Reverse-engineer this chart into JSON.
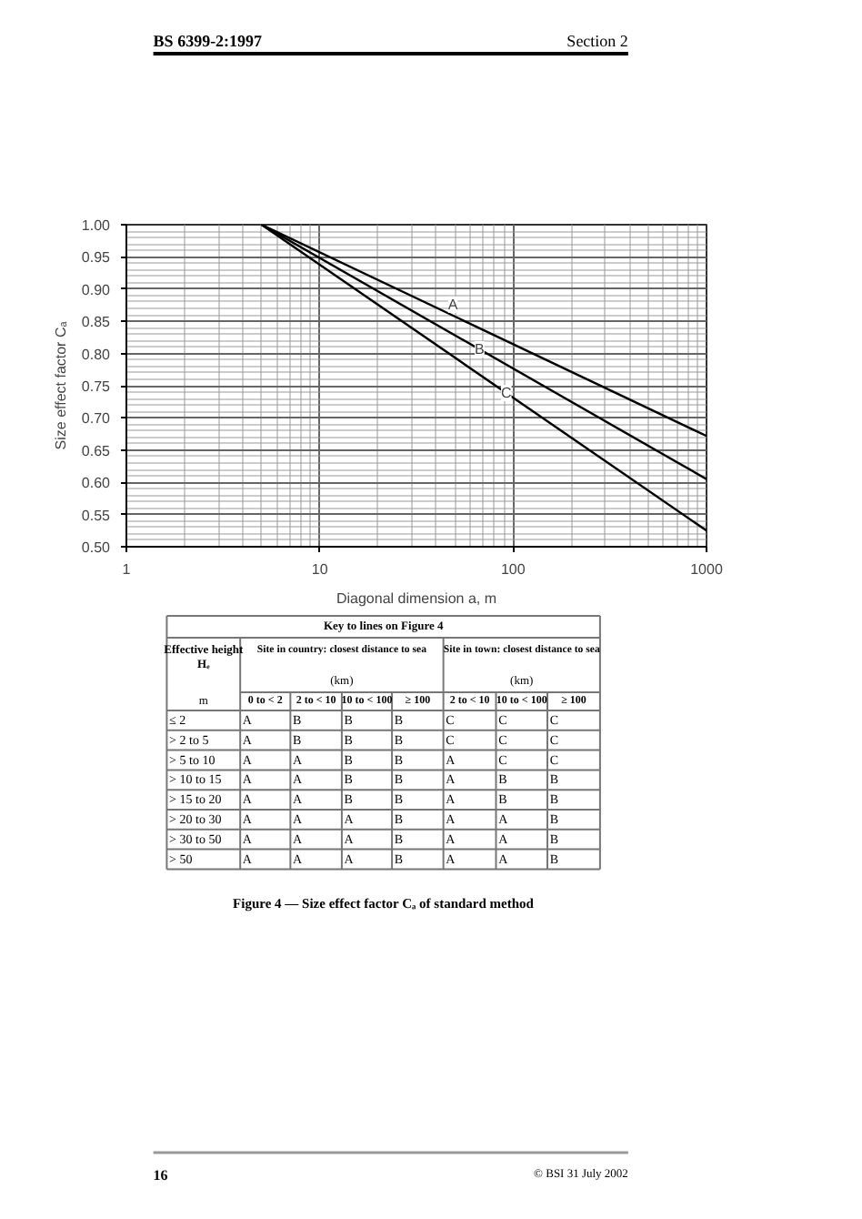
{
  "chart_data": [
    {
      "type": "line",
      "xlabel": "Diagonal dimension a, m",
      "ylabel": "Size effect factor Cₐ",
      "log": "x",
      "grid": true,
      "xlim": [
        1,
        1000
      ],
      "ylim": [
        0.5,
        1.0
      ],
      "xticks": [
        1,
        10,
        100,
        1000
      ],
      "yticks": [
        {
          "value": 0.5,
          "label": "0.50"
        },
        {
          "value": 0.55,
          "label": "0.55"
        },
        {
          "value": 0.6,
          "label": "0.60"
        },
        {
          "value": 0.65,
          "label": "0.65"
        },
        {
          "value": 0.7,
          "label": "0.70"
        },
        {
          "value": 0.75,
          "label": "0.75"
        },
        {
          "value": 0.8,
          "label": "0.80"
        },
        {
          "value": 0.85,
          "label": "0.85"
        },
        {
          "value": 0.9,
          "label": "0.90"
        },
        {
          "value": 0.95,
          "label": "0.95"
        },
        {
          "value": 1.0,
          "label": "1.00"
        }
      ],
      "x": [
        5,
        1000
      ],
      "series": [
        {
          "name": "A",
          "color": "#000000",
          "values": [
            1.0,
            0.672
          ]
        },
        {
          "name": "B",
          "color": "#000000",
          "values": [
            1.0,
            0.605
          ]
        },
        {
          "name": "C",
          "color": "#000000",
          "values": [
            1.0,
            0.525
          ]
        }
      ],
      "annotations": [
        "BS 6399-2:1997",
        "Section 2"
      ]
    },
    {
      "type": "other",
      "title": "Key to lines on Figure 4",
      "annotations": [
        "Effective height Hₑ",
        "m",
        "Site in country: closest distance to sea",
        "(km)",
        "Site in town: closest distance to sea",
        "(km)",
        "0 to < 2",
        "2 to < 10",
        "10 to < 100",
        "≥ 100",
        "2 to < 10",
        "10 to < 100",
        "≥ 100",
        "≤ 2",
        "A",
        "B",
        "B",
        "B",
        "C",
        "C",
        "C",
        "> 2 to 5",
        "A",
        "B",
        "B",
        "B",
        "C",
        "C",
        "C",
        "> 5 to 10",
        "A",
        "A",
        "B",
        "B",
        "A",
        "C",
        "C",
        "> 10 to 15",
        "A",
        "A",
        "B",
        "B",
        "A",
        "B",
        "B",
        "> 15 to 20",
        "A",
        "A",
        "B",
        "B",
        "A",
        "B",
        "B",
        "> 20 to 30",
        "A",
        "A",
        "A",
        "B",
        "A",
        "A",
        "B",
        "> 30 to 50",
        "A",
        "A",
        "A",
        "B",
        "A",
        "A",
        "B",
        "> 50",
        "A",
        "A",
        "A",
        "B",
        "A",
        "A",
        "B",
        "Figure 4 — Size effect factor Cₐ of standard method",
        "16",
        "© BSI 31 July 2002"
      ]
    }
  ]
}
